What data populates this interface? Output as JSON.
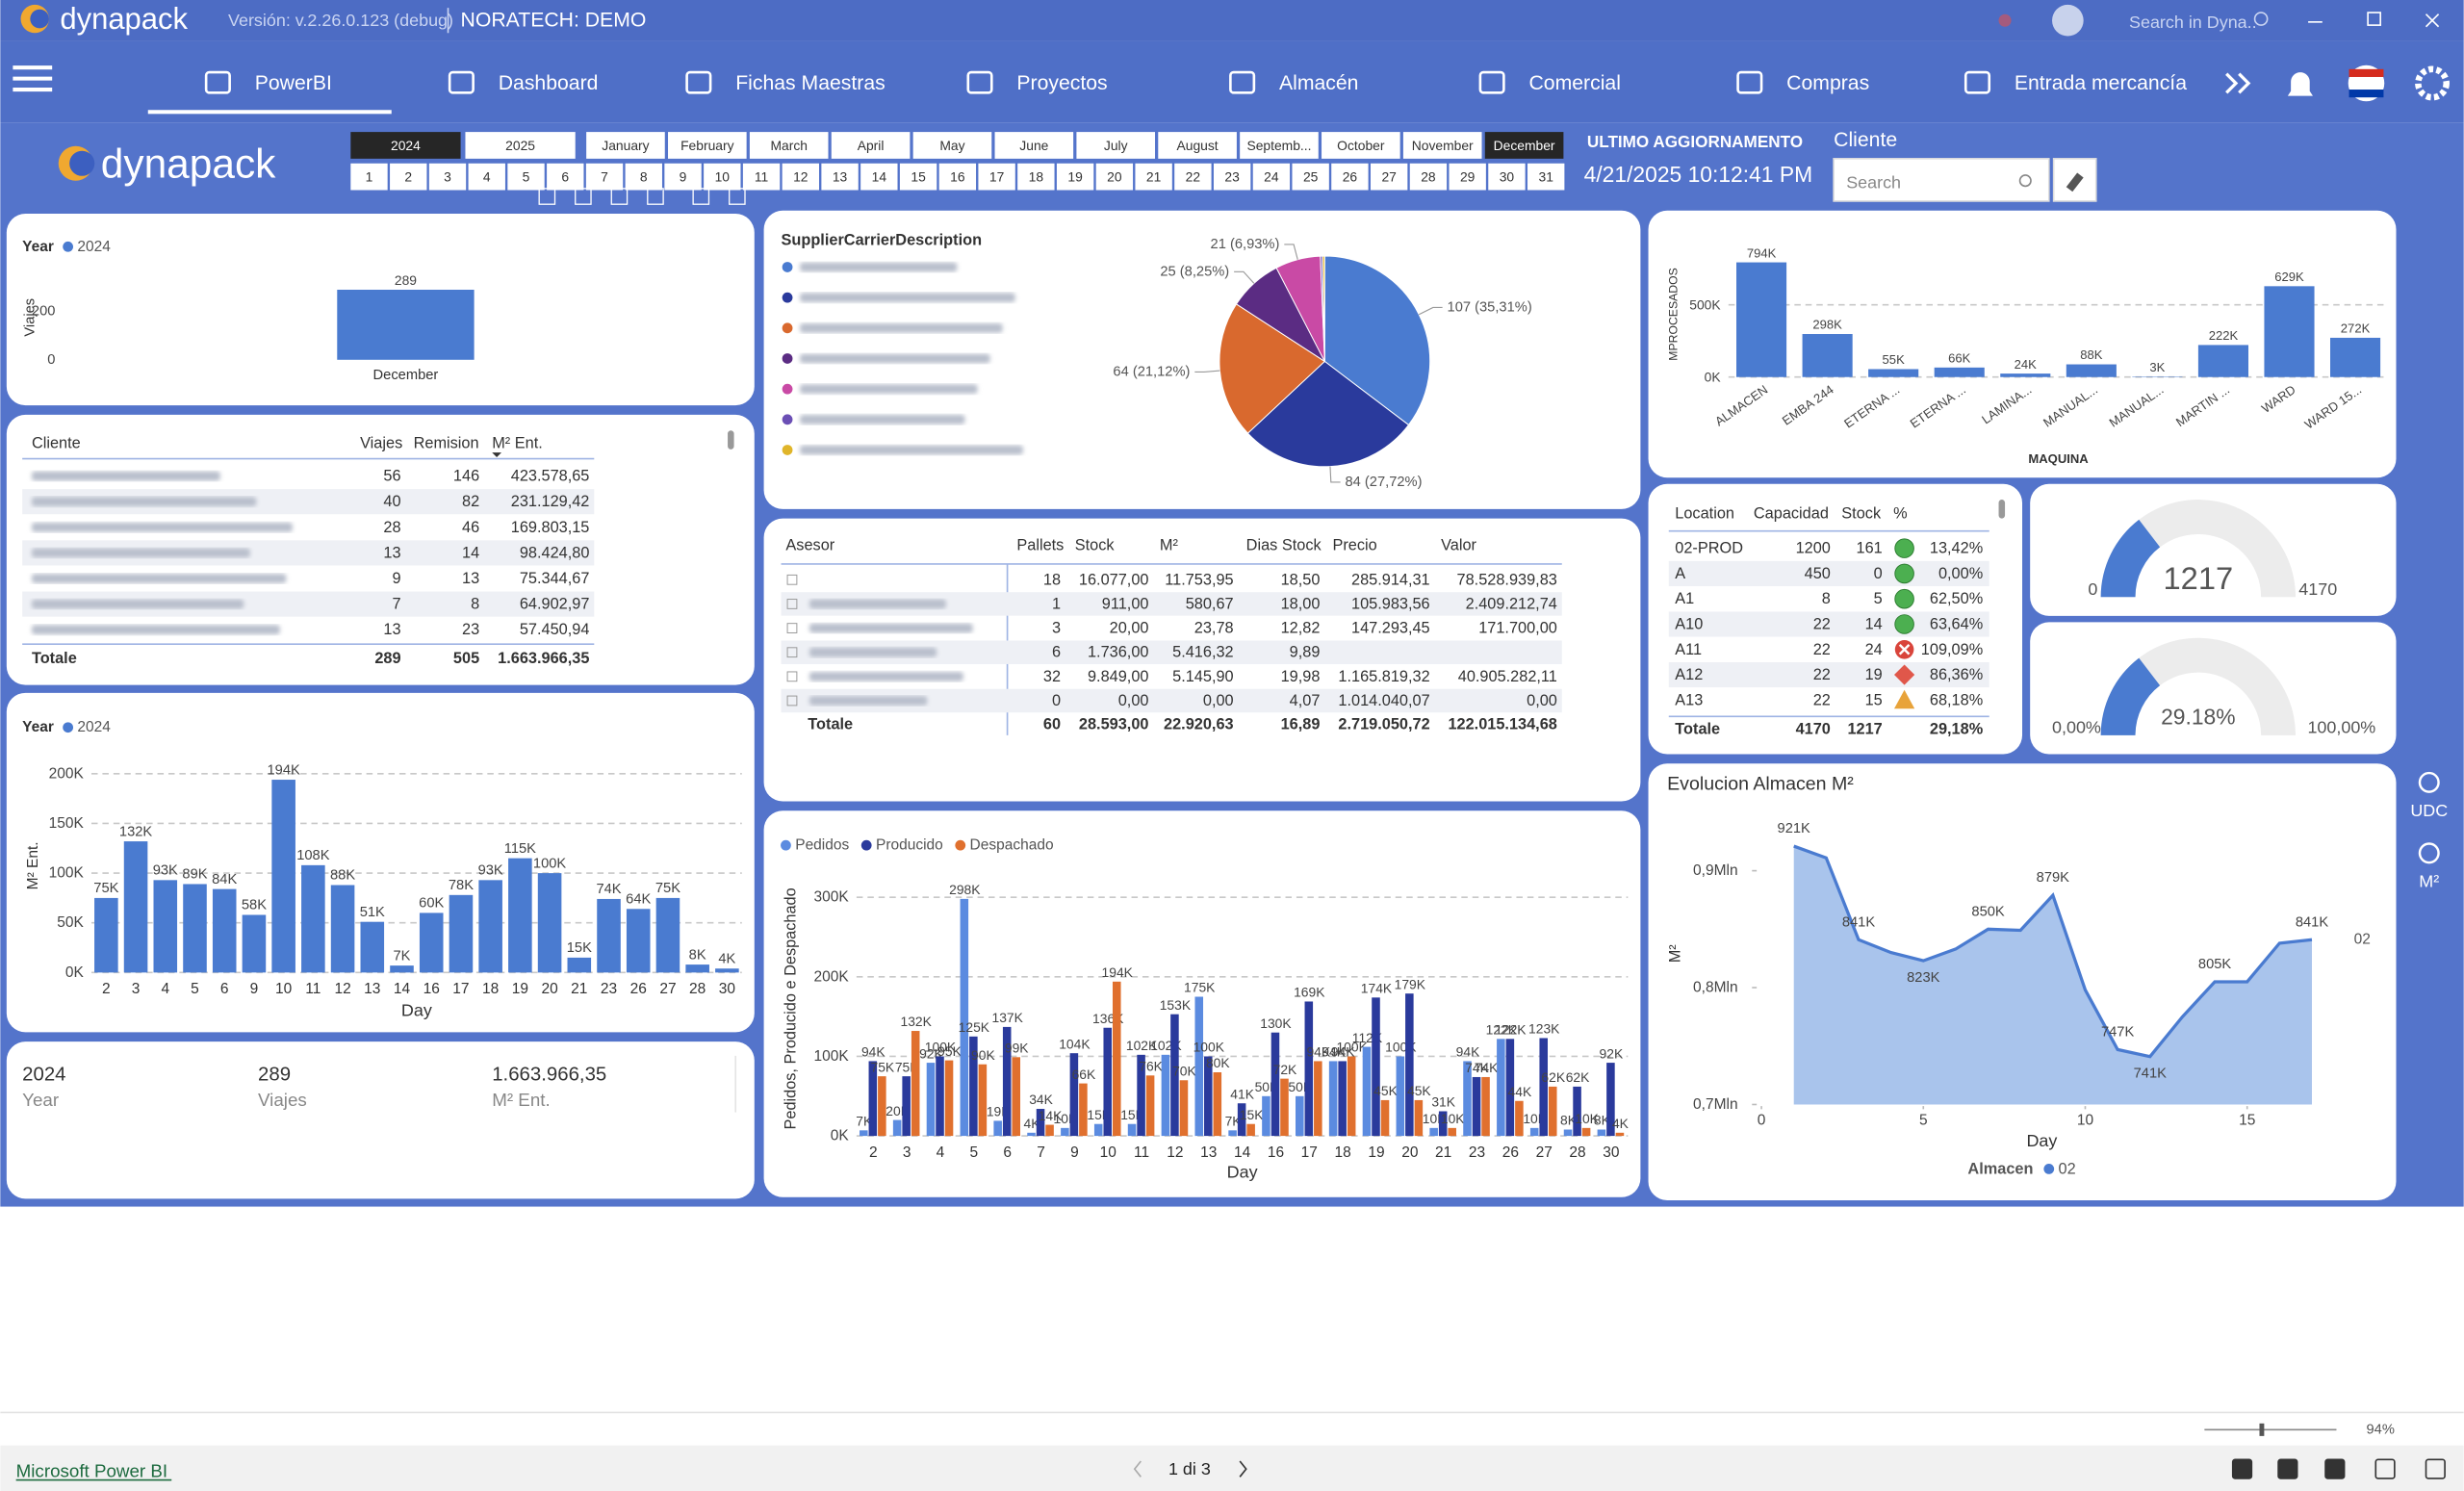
{
  "header": {
    "app": "dynapack",
    "version": "Versión: v.2.26.0.123 (debug)",
    "company": "NORATECH: DEMO",
    "search": "Search in Dyna.."
  },
  "nav": [
    "PowerBI",
    "Dashboard",
    "Fichas Maestras",
    "Proyectos",
    "Almacén",
    "Comercial",
    "Compras",
    "Entrada mercancía"
  ],
  "filters": {
    "logo": "dynapack",
    "years": [
      "2024",
      "2025"
    ],
    "months": [
      "January",
      "February",
      "March",
      "April",
      "May",
      "June",
      "July",
      "August",
      "Septemb...",
      "October",
      "November",
      "December"
    ],
    "days": [
      1,
      2,
      3,
      4,
      5,
      6,
      7,
      8,
      9,
      10,
      11,
      12,
      13,
      14,
      15,
      16,
      17,
      18,
      19,
      20,
      21,
      22,
      23,
      24,
      25,
      26,
      27,
      28,
      29,
      30,
      31
    ],
    "selected_year": 0,
    "selected_month": 11
  },
  "update": {
    "label": "ULTIMO AGGIORNAMENTO",
    "value": "4/21/2025 10:12:41 PM"
  },
  "cliente": {
    "label": "Cliente",
    "placeholder": "Search"
  },
  "side": [
    "UDC",
    "M²"
  ],
  "clients_table": {
    "columns": [
      "Cliente",
      "Viajes",
      "Remision",
      "M² Ent."
    ],
    "rows": [
      [
        56,
        146,
        "423.578,65"
      ],
      [
        40,
        82,
        "231.129,42"
      ],
      [
        28,
        46,
        "169.803,15"
      ],
      [
        13,
        14,
        "98.424,80"
      ],
      [
        9,
        13,
        "75.344,67"
      ],
      [
        7,
        8,
        "64.902,97"
      ],
      [
        13,
        23,
        "57.450,94"
      ]
    ],
    "total": [
      "Totale",
      289,
      505,
      "1.663.966,35"
    ]
  },
  "kpi": [
    {
      "value": "2024",
      "label": "Year"
    },
    {
      "value": "289",
      "label": "Viajes"
    },
    {
      "value": "1.663.966,35",
      "label": "M² Ent."
    }
  ],
  "asesor_table": {
    "columns": [
      "Asesor",
      "Pallets",
      "Stock",
      "M²",
      "Dias Stock",
      "Precio",
      "Valor"
    ],
    "rows": [
      [
        18,
        "16.077,00",
        "11.753,95",
        "18,50",
        "285.914,31",
        "78.528.939,83"
      ],
      [
        1,
        "911,00",
        "580,67",
        "18,00",
        "105.983,56",
        "2.409.212,74"
      ],
      [
        3,
        "20,00",
        "23,78",
        "12,82",
        "147.293,45",
        "171.700,00"
      ],
      [
        6,
        "1.736,00",
        "5.416,32",
        "9,89",
        null,
        null
      ],
      [
        32,
        "9.849,00",
        "5.145,90",
        "19,98",
        "1.165.819,32",
        "40.905.282,11"
      ],
      [
        0,
        "0,00",
        "0,00",
        "4,07",
        "1.014.040,07",
        "0,00"
      ]
    ],
    "total": [
      "Totale",
      60,
      "28.593,00",
      "22.920,63",
      "16,89",
      "2.719.050,72",
      "122.015.134,68"
    ]
  },
  "location_table": {
    "columns": [
      "Location",
      "Capacidad",
      "Stock",
      "%"
    ],
    "rows": [
      [
        "02-PROD",
        1200,
        161,
        "13,42%"
      ],
      [
        "A",
        450,
        0,
        "0,00%"
      ],
      [
        "A1",
        8,
        5,
        "62,50%"
      ],
      [
        "A10",
        22,
        14,
        "63,64%"
      ],
      [
        "A11",
        22,
        24,
        "109,09%"
      ],
      [
        "A12",
        22,
        19,
        "86,36%"
      ],
      [
        "A13",
        22,
        15,
        "68,18%"
      ]
    ],
    "status": [
      {
        "shape": "circle",
        "color": "#4caf50"
      },
      {
        "shape": "circle",
        "color": "#4caf50"
      },
      {
        "shape": "circle",
        "color": "#4caf50"
      },
      {
        "shape": "circle",
        "color": "#4caf50"
      },
      {
        "shape": "cross",
        "color": "#d9453b"
      },
      {
        "shape": "diamond",
        "color": "#e0574a"
      },
      {
        "shape": "triangle",
        "color": "#e8a33a"
      }
    ],
    "total": [
      "Totale",
      4170,
      1217,
      "29,18%"
    ]
  },
  "footer": {
    "brand": "Microsoft Power BI",
    "page": "1 di 3",
    "zoom": "94%"
  },
  "chart_data": [
    {
      "type": "bar",
      "legend_title": "Year",
      "ylabel": "Viajes",
      "categories": [
        "December"
      ],
      "series": [
        {
          "name": "2024",
          "color": "#4a7bd0",
          "values": [
            289
          ]
        }
      ],
      "ylim": [
        0,
        350
      ],
      "yticks": [
        0,
        200
      ],
      "grid": false
    },
    {
      "type": "bar",
      "legend_title": "Year",
      "ylabel": "M² Ent.",
      "xlabel": "Day",
      "categories": [
        "2",
        "3",
        "4",
        "5",
        "6",
        "9",
        "10",
        "11",
        "12",
        "13",
        "14",
        "16",
        "17",
        "18",
        "19",
        "20",
        "21",
        "23",
        "26",
        "27",
        "28",
        "30"
      ],
      "series": [
        {
          "name": "2024",
          "color": "#4a7bd0",
          "values": [
            75000,
            132000,
            93000,
            89000,
            84000,
            58000,
            194000,
            108000,
            88000,
            51000,
            7000,
            60000,
            78000,
            93000,
            115000,
            100000,
            15000,
            74000,
            64000,
            75000,
            8000,
            4000
          ],
          "value_labels": [
            "75K",
            "132K",
            "93K",
            "89K",
            "84K",
            "58K",
            "194K",
            "108K",
            "88K",
            "51K",
            "7K",
            "60K",
            "78K",
            "93K",
            "115K",
            "100K",
            "15K",
            "74K",
            "64K",
            "75K",
            "8K",
            "4K"
          ]
        }
      ],
      "ylim": [
        0,
        215000
      ],
      "yticks": [
        {
          "value": 0,
          "label": "0K"
        },
        {
          "value": 50000,
          "label": "50K"
        },
        {
          "value": 100000,
          "label": "100K"
        },
        {
          "value": 150000,
          "label": "150K"
        },
        {
          "value": 200000,
          "label": "200K"
        }
      ],
      "grid": true
    },
    {
      "type": "pie",
      "title": "SupplierCarrierDescription",
      "values": [
        107,
        84,
        64,
        25,
        21,
        1,
        1
      ],
      "value_labels": [
        "107 (35,31%)",
        "84 (27,72%)",
        "64 (21,12%)",
        "25 (8,25%)",
        "21 (6,93%)",
        null,
        null
      ],
      "colors": [
        "#4a7bd0",
        "#2a3a9c",
        "#d9692e",
        "#5b2c83",
        "#c94aa5",
        "#6b4fb5",
        "#e0b52a"
      ]
    },
    {
      "type": "bar",
      "ylabel": "Pedidos, Producido e Despachado",
      "xlabel": "Day",
      "categories": [
        "2",
        "3",
        "4",
        "5",
        "6",
        "7",
        "9",
        "10",
        "11",
        "12",
        "13",
        "14",
        "16",
        "17",
        "18",
        "19",
        "20",
        "21",
        "23",
        "26",
        "27",
        "28",
        "30"
      ],
      "series": [
        {
          "name": "Pedidos",
          "color": "#5b8be0",
          "values": [
            7000,
            20000,
            92000,
            298000,
            19000,
            4000,
            10000,
            15000,
            15000,
            102000,
            175000,
            7000,
            50000,
            50000,
            94000,
            112000,
            100000,
            10000,
            94000,
            122000,
            10000,
            8000,
            8000
          ],
          "value_labels": [
            "7K",
            "20K",
            "92K",
            "298K",
            "19K",
            "4K",
            "10K",
            "15K",
            "15K",
            "102K",
            "175K",
            "7K",
            "50K",
            "50K",
            "94K",
            "112K",
            "100K",
            "10K",
            "94K",
            "122K",
            "10K",
            "8K",
            "8K"
          ]
        },
        {
          "name": "Producido",
          "color": "#2a3a9c",
          "values": [
            94000,
            75000,
            100000,
            125000,
            137000,
            34000,
            104000,
            136000,
            102000,
            153000,
            100000,
            41000,
            130000,
            169000,
            94000,
            174000,
            179000,
            31000,
            74000,
            122000,
            123000,
            62000,
            92000
          ],
          "value_labels": [
            "94K",
            "75K",
            "100K",
            "125K",
            "137K",
            "34K",
            "104K",
            "136K",
            "102K",
            "153K",
            "100K",
            "41K",
            "130K",
            "169K",
            "94K",
            "174K",
            "179K",
            "31K",
            "74K",
            "122K",
            "123K",
            "62K",
            "92K"
          ]
        },
        {
          "name": "Despachado",
          "color": "#e0702e",
          "values": [
            75000,
            132000,
            95000,
            90000,
            99000,
            14000,
            66000,
            194000,
            76000,
            70000,
            80000,
            15000,
            72000,
            94000,
            100000,
            45000,
            45000,
            10000,
            74000,
            44000,
            62000,
            10000,
            4000
          ],
          "value_labels": [
            "75K",
            "132K",
            "95K",
            "90K",
            "99K",
            "14K",
            "66K",
            "194K",
            "76K",
            "70K",
            "80K",
            "15K",
            "72K",
            "94K",
            "100K",
            "45K",
            "45K",
            "10K",
            "74K",
            "44K",
            "62K",
            "10K",
            "4K"
          ]
        }
      ],
      "ylim": [
        0,
        320000
      ],
      "yticks": [
        {
          "value": 0,
          "label": "0K"
        },
        {
          "value": 100000,
          "label": "100K"
        },
        {
          "value": 200000,
          "label": "200K"
        },
        {
          "value": 300000,
          "label": "300K"
        }
      ],
      "grid": true
    },
    {
      "type": "bar",
      "ylabel": "MPROCESADOS",
      "xlabel": "MAQUINA",
      "categories": [
        "ALMACEN",
        "EMBA 244",
        "ETERNA ...",
        "ETERNA ...",
        "LAMINA...",
        "MANUAL...",
        "MANUAL...",
        "MARTIN ...",
        "WARD",
        "WARD 15..."
      ],
      "series": [
        {
          "name": "MPROCESADOS",
          "color": "#4a7bd0",
          "values": [
            794000,
            298000,
            55000,
            66000,
            24000,
            88000,
            3000,
            222000,
            629000,
            272000
          ],
          "value_labels": [
            "794K",
            "298K",
            "55K",
            "66K",
            "24K",
            "88K",
            "3K",
            "222K",
            "629K",
            "272K"
          ]
        }
      ],
      "ylim": [
        0,
        870000
      ],
      "yticks": [
        {
          "value": 0,
          "label": "0K"
        },
        {
          "value": 500000,
          "label": "500K"
        }
      ],
      "grid": true
    },
    {
      "type": "gauge",
      "value": 1217,
      "ylim": [
        0,
        4170
      ],
      "yticks": [
        0,
        4170
      ],
      "color": "#4a7bd0"
    },
    {
      "type": "gauge",
      "value": 29.18,
      "value_label": "29.18%",
      "ylim": [
        0,
        100
      ],
      "yticks": [
        {
          "value": 0,
          "label": "0,00%"
        },
        {
          "value": 100,
          "label": "100,00%"
        }
      ],
      "color": "#4a7bd0"
    },
    {
      "type": "area",
      "title": "Evolucion Almacen M²",
      "ylabel": "M²",
      "xlabel": "Day",
      "legend_title": "Almacen",
      "x": [
        1,
        2,
        3,
        4,
        5,
        6,
        7,
        8,
        9,
        10,
        11,
        12,
        13,
        14,
        15,
        16,
        17
      ],
      "series": [
        {
          "name": "02",
          "color": "#4a7bd0",
          "fill": "#a9c4ec",
          "values": [
            921000,
            911000,
            841000,
            830000,
            823000,
            833000,
            850000,
            849000,
            879000,
            798000,
            747000,
            741000,
            775000,
            805000,
            805000,
            838000,
            841000
          ],
          "value_labels": [
            "921K",
            null,
            "841K",
            null,
            "823K",
            null,
            "850K",
            null,
            "879K",
            null,
            "747K",
            "741K",
            null,
            "805K",
            null,
            null,
            "841K"
          ]
        }
      ],
      "xlim": [
        0,
        18
      ],
      "xticks": [
        0,
        5,
        10,
        15
      ],
      "ylim": [
        700000,
        950000
      ],
      "yticks": [
        {
          "value": 700000,
          "label": "0,7Mln"
        },
        {
          "value": 800000,
          "label": "0,8Mln"
        },
        {
          "value": 900000,
          "label": "0,9Mln"
        }
      ],
      "grid": false
    }
  ]
}
